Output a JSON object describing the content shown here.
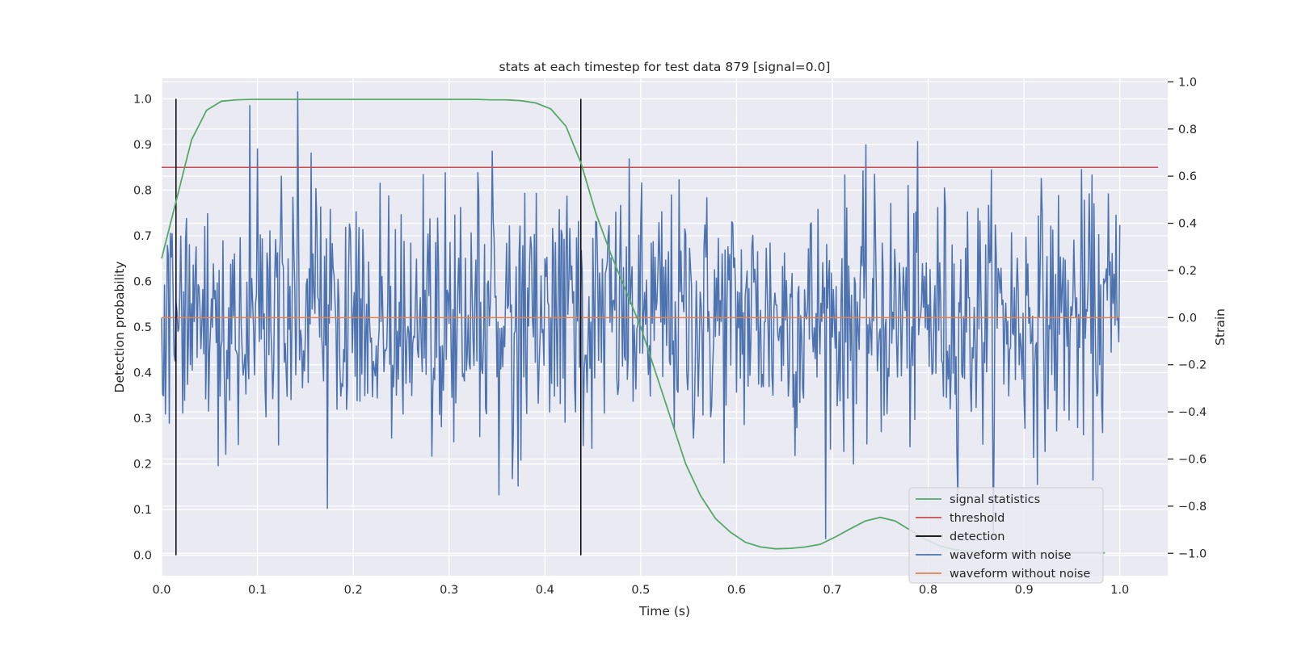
{
  "chart_data": {
    "type": "line",
    "title": "stats at each timestep for test data 879 [signal=0.0]",
    "xlabel": "Time (s)",
    "ylabel_left": "Detection probability",
    "ylabel_right": "Strain",
    "xlim": [
      0.0,
      1.05
    ],
    "ylim_left": [
      -0.045,
      1.045
    ],
    "ylim_right": [
      -1.095,
      1.015
    ],
    "x_ticks": [
      0.0,
      0.1,
      0.2,
      0.3,
      0.4,
      0.5,
      0.6,
      0.7,
      0.8,
      0.9,
      1.0
    ],
    "x_tick_labels": [
      "0.0",
      "0.1",
      "0.2",
      "0.3",
      "0.4",
      "0.5",
      "0.6",
      "0.7",
      "0.8",
      "0.9",
      "1.0"
    ],
    "left_ticks": [
      0.0,
      0.1,
      0.2,
      0.3,
      0.4,
      0.5,
      0.6,
      0.7,
      0.8,
      0.9,
      1.0
    ],
    "left_tick_labels": [
      "0.0",
      "0.1",
      "0.2",
      "0.3",
      "0.4",
      "0.5",
      "0.6",
      "0.7",
      "0.8",
      "0.9",
      "1.0"
    ],
    "right_ticks": [
      -1.0,
      -0.8,
      -0.6,
      -0.4,
      -0.2,
      0.0,
      0.2,
      0.4,
      0.6,
      0.8,
      1.0
    ],
    "right_tick_labels": [
      "−1.0",
      "−0.8",
      "−0.6",
      "−0.4",
      "−0.2",
      "0.0",
      "0.2",
      "0.4",
      "0.6",
      "0.8",
      "1.0"
    ],
    "grid": true,
    "legend_position": "lower-right",
    "series": [
      {
        "name": "signal statistics",
        "axis": "left",
        "color": "#55a868",
        "x": [
          0.0,
          0.0156,
          0.0312,
          0.0469,
          0.0625,
          0.0781,
          0.0938,
          0.1094,
          0.125,
          0.1406,
          0.1562,
          0.1719,
          0.1875,
          0.2031,
          0.2188,
          0.2344,
          0.25,
          0.2656,
          0.2812,
          0.2969,
          0.3125,
          0.3281,
          0.3438,
          0.3594,
          0.375,
          0.3906,
          0.4062,
          0.4219,
          0.4375,
          0.4531,
          0.4688,
          0.4844,
          0.5,
          0.5156,
          0.5312,
          0.5469,
          0.5625,
          0.5781,
          0.5938,
          0.6094,
          0.625,
          0.6406,
          0.6562,
          0.6719,
          0.6875,
          0.7031,
          0.7188,
          0.7344,
          0.75,
          0.7656,
          0.7812,
          0.7969,
          0.8125,
          0.8281,
          0.8438,
          0.8594,
          0.875,
          0.8906,
          0.9062,
          0.9219,
          0.9375,
          0.9531,
          0.9688,
          0.9844
        ],
        "y": [
          0.65,
          0.78,
          0.91,
          0.975,
          0.995,
          0.998,
          0.999,
          0.999,
          0.999,
          0.999,
          0.999,
          0.999,
          0.999,
          0.999,
          0.999,
          0.999,
          0.999,
          0.999,
          0.999,
          0.999,
          0.999,
          0.999,
          0.998,
          0.998,
          0.996,
          0.991,
          0.978,
          0.94,
          0.86,
          0.75,
          0.66,
          0.58,
          0.5,
          0.4,
          0.3,
          0.2,
          0.13,
          0.08,
          0.05,
          0.028,
          0.018,
          0.014,
          0.015,
          0.018,
          0.024,
          0.04,
          0.058,
          0.075,
          0.083,
          0.075,
          0.055,
          0.035,
          0.02,
          0.012,
          0.008,
          0.006,
          0.005,
          0.005,
          0.005,
          0.005,
          0.005,
          0.005,
          0.005,
          0.005
        ]
      },
      {
        "name": "threshold",
        "axis": "left",
        "color": "#c44e52",
        "x": [
          0.0,
          1.04
        ],
        "y": [
          0.85,
          0.85
        ]
      },
      {
        "name": "waveform with noise",
        "axis": "right",
        "color": "#4c72b0",
        "x_start": 0.0,
        "x_step": 0.001,
        "amplitude_std": 0.27,
        "y_range": [
          -1.0,
          1.0
        ],
        "y": []
      },
      {
        "name": "waveform without noise",
        "axis": "right",
        "color": "#dd8452",
        "x": [
          0.0,
          1.0
        ],
        "y": [
          0.0,
          0.0
        ]
      }
    ],
    "detections": {
      "name": "detection",
      "color": "#000000",
      "x": [
        0.015,
        0.4375
      ],
      "y_range": [
        0.0,
        1.0
      ]
    },
    "legend": [
      {
        "label": "signal statistics",
        "color": "#55a868"
      },
      {
        "label": "threshold",
        "color": "#c44e52"
      },
      {
        "label": "detection",
        "color": "#000000"
      },
      {
        "label": "waveform with noise",
        "color": "#4c72b0"
      },
      {
        "label": "waveform without noise",
        "color": "#dd8452"
      }
    ],
    "plot_background": "#eaeaf2",
    "grid_color": "#ffffff"
  }
}
